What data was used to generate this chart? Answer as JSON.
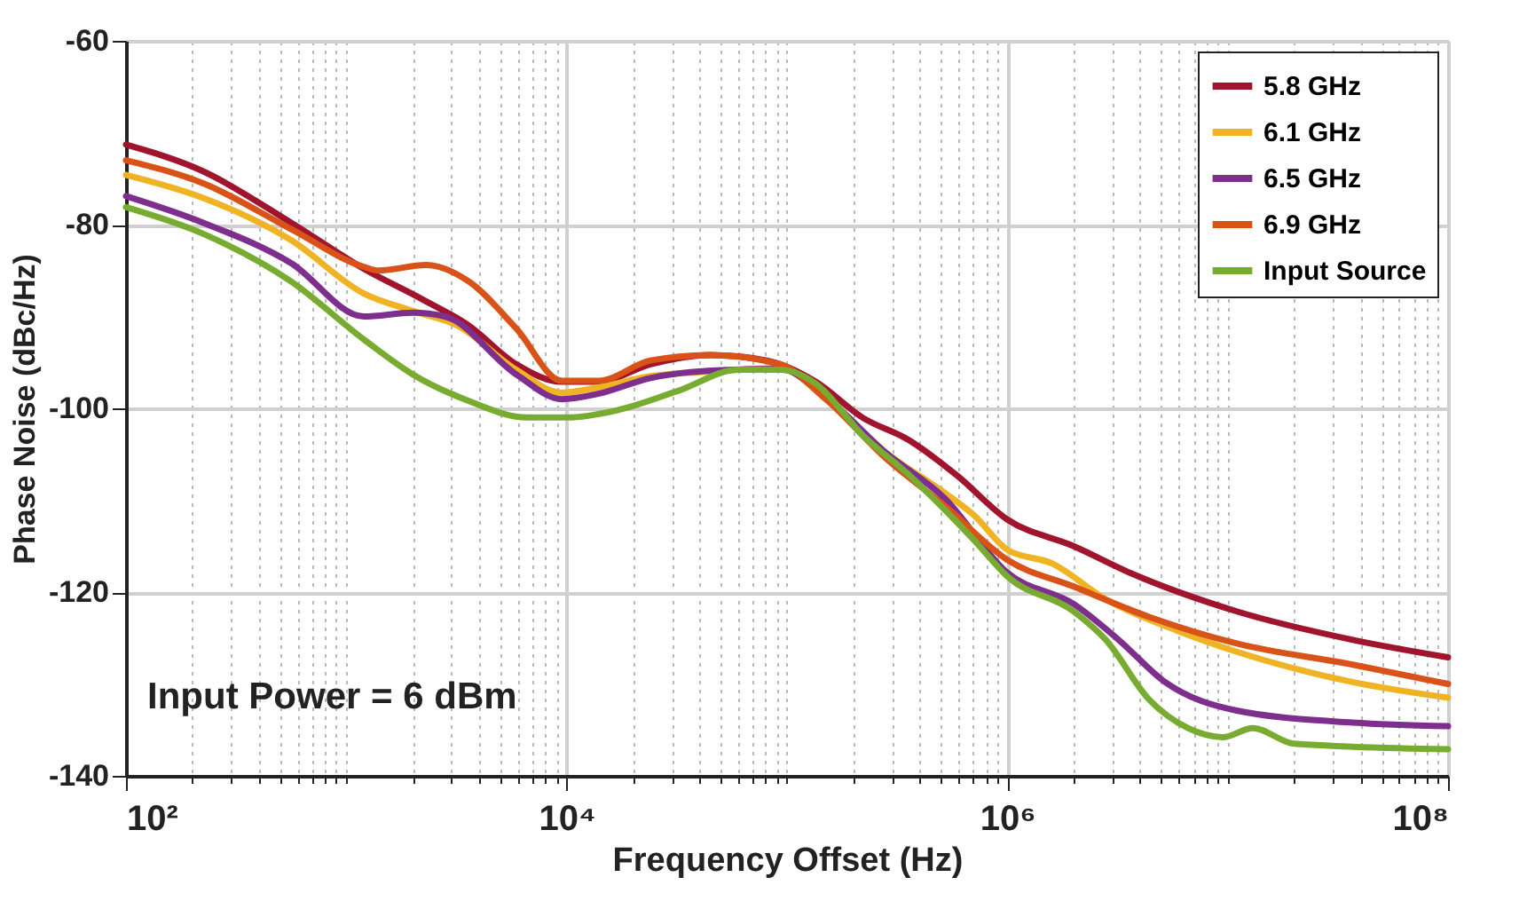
{
  "chart_data": {
    "type": "line",
    "xlabel": "Frequency Offset (Hz)",
    "ylabel": "Phase Noise (dBc/Hz)",
    "log": "x",
    "xlim": [
      100,
      100000000
    ],
    "ylim": [
      -140,
      -60
    ],
    "xticks": [
      {
        "value": 100,
        "label": "10²"
      },
      {
        "value": 200,
        "label": null
      },
      {
        "value": 300,
        "label": null
      },
      {
        "value": 400,
        "label": null
      },
      {
        "value": 500,
        "label": null
      },
      {
        "value": 600,
        "label": null
      },
      {
        "value": 700,
        "label": null
      },
      {
        "value": 800,
        "label": null
      },
      {
        "value": 900,
        "label": null
      },
      {
        "value": 1000,
        "label": null
      },
      {
        "value": 2000,
        "label": null
      },
      {
        "value": 3000,
        "label": null
      },
      {
        "value": 4000,
        "label": null
      },
      {
        "value": 5000,
        "label": null
      },
      {
        "value": 6000,
        "label": null
      },
      {
        "value": 7000,
        "label": null
      },
      {
        "value": 8000,
        "label": null
      },
      {
        "value": 9000,
        "label": null
      },
      {
        "value": 10000,
        "label": "10⁴"
      },
      {
        "value": 20000,
        "label": null
      },
      {
        "value": 30000,
        "label": null
      },
      {
        "value": 40000,
        "label": null
      },
      {
        "value": 50000,
        "label": null
      },
      {
        "value": 60000,
        "label": null
      },
      {
        "value": 70000,
        "label": null
      },
      {
        "value": 80000,
        "label": null
      },
      {
        "value": 90000,
        "label": null
      },
      {
        "value": 100000,
        "label": null
      },
      {
        "value": 200000,
        "label": null
      },
      {
        "value": 300000,
        "label": null
      },
      {
        "value": 400000,
        "label": null
      },
      {
        "value": 500000,
        "label": null
      },
      {
        "value": 600000,
        "label": null
      },
      {
        "value": 700000,
        "label": null
      },
      {
        "value": 800000,
        "label": null
      },
      {
        "value": 900000,
        "label": null
      },
      {
        "value": 1000000,
        "label": "10⁶"
      },
      {
        "value": 2000000,
        "label": null
      },
      {
        "value": 3000000,
        "label": null
      },
      {
        "value": 4000000,
        "label": null
      },
      {
        "value": 5000000,
        "label": null
      },
      {
        "value": 6000000,
        "label": null
      },
      {
        "value": 7000000,
        "label": null
      },
      {
        "value": 8000000,
        "label": null
      },
      {
        "value": 9000000,
        "label": null
      },
      {
        "value": 10000000,
        "label": null
      },
      {
        "value": 20000000,
        "label": null
      },
      {
        "value": 30000000,
        "label": null
      },
      {
        "value": 40000000,
        "label": null
      },
      {
        "value": 50000000,
        "label": null
      },
      {
        "value": 60000000,
        "label": null
      },
      {
        "value": 70000000,
        "label": null
      },
      {
        "value": 80000000,
        "label": null
      },
      {
        "value": 90000000,
        "label": null
      },
      {
        "value": 100000000,
        "label": "10⁸"
      }
    ],
    "yticks": [
      -140,
      -120,
      -100,
      -80,
      -60
    ],
    "grid": true,
    "legend": "top right",
    "marker": "none",
    "line_style": "solid",
    "annotations": [
      "Input Power = 6 dBm"
    ],
    "series": [
      {
        "name": "5.8 GHz",
        "color": "#a0142e",
        "x": [
          100,
          224,
          562,
          1200,
          2200,
          3600,
          5900,
          9500,
          14000,
          24000,
          45000,
          81000,
          135000,
          220000,
          360000,
          590000,
          1000000,
          2000000,
          3600000,
          11000000,
          37000000,
          100000000
        ],
        "values": [
          -71.3,
          -74.2,
          -79.8,
          -84.8,
          -88.1,
          -91,
          -95.2,
          -97.1,
          -97.1,
          -95.2,
          -94.2,
          -94.8,
          -97.1,
          -101,
          -103.5,
          -107.3,
          -112.1,
          -115,
          -117.9,
          -122.1,
          -125.2,
          -127.1
        ]
      },
      {
        "name": "6.1 GHz",
        "color": "#f0b323",
        "x": [
          100,
          224,
          562,
          1200,
          2000,
          3200,
          5900,
          9500,
          14000,
          24000,
          45000,
          93000,
          150000,
          280000,
          520000,
          710000,
          1000000,
          1600000,
          2800000,
          5900000,
          11000000,
          37000000,
          100000000
        ],
        "values": [
          -74.6,
          -77.1,
          -81.7,
          -87.5,
          -89.4,
          -91,
          -95.8,
          -98.3,
          -97.7,
          -96.5,
          -96,
          -95.6,
          -99,
          -104.8,
          -109.2,
          -111.7,
          -115.4,
          -116.9,
          -120.8,
          -124.2,
          -126.5,
          -129.8,
          -131.5
        ]
      },
      {
        "name": "6.5 GHz",
        "color": "#7e2f8e",
        "x": [
          100,
          224,
          562,
          1200,
          2000,
          2800,
          5900,
          9500,
          14000,
          24000,
          45000,
          93000,
          150000,
          280000,
          520000,
          1000000,
          2000000,
          3200000,
          5200000,
          11000000,
          37000000,
          100000000
        ],
        "values": [
          -76.9,
          -79.8,
          -84.2,
          -90,
          -89.6,
          -90,
          -96.3,
          -99,
          -98.4,
          -96.7,
          -95.9,
          -95.7,
          -98.8,
          -104.8,
          -109.8,
          -117.9,
          -121.3,
          -125.2,
          -129.8,
          -132.9,
          -134.2,
          -134.6
        ]
      },
      {
        "name": "6.9 GHz",
        "color": "#d95319",
        "x": [
          100,
          224,
          562,
          1200,
          1400,
          2300,
          3600,
          5900,
          9500,
          14000,
          24000,
          45000,
          93000,
          150000,
          280000,
          520000,
          1000000,
          2000000,
          4400000,
          11000000,
          37000000,
          100000000
        ],
        "values": [
          -73,
          -75.5,
          -80.5,
          -84.6,
          -85,
          -84.4,
          -86.2,
          -91.3,
          -97,
          -97,
          -94.8,
          -94.2,
          -95.2,
          -99,
          -105.4,
          -110.6,
          -116.5,
          -119.4,
          -122.7,
          -125.6,
          -127.9,
          -130
        ]
      },
      {
        "name": "Input Source",
        "color": "#77ac30",
        "x": [
          100,
          224,
          562,
          1200,
          2000,
          3600,
          6600,
          10000,
          17000,
          32000,
          60000,
          93000,
          135000,
          220000,
          360000,
          710000,
          1000000,
          2000000,
          2800000,
          4400000,
          6600000,
          9500000,
          13000000,
          20000000,
          100000000
        ],
        "values": [
          -78.1,
          -81,
          -86.2,
          -92.5,
          -96.3,
          -99.2,
          -101,
          -101,
          -100.2,
          -98.1,
          -95.8,
          -95.8,
          -97.3,
          -102.9,
          -107.3,
          -114.4,
          -118.3,
          -122.1,
          -125.2,
          -131.7,
          -134.8,
          -135.8,
          -134.8,
          -136.5,
          -137.1
        ]
      }
    ]
  }
}
